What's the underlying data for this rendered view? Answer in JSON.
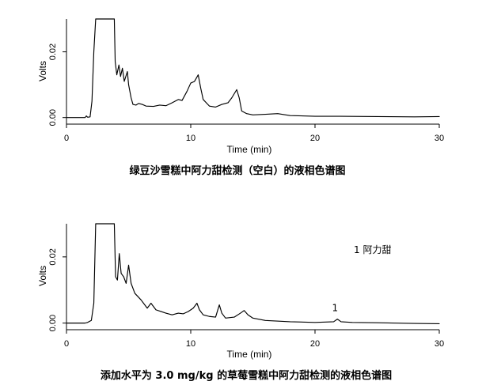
{
  "chart_data": [
    {
      "type": "line",
      "title": "绿豆沙雪糕中阿力甜检测（空白）的液相色谱图",
      "xlabel": "Time (min)",
      "ylabel": "Volts",
      "xlim": [
        0,
        30
      ],
      "ylim": [
        -0.002,
        0.03
      ],
      "xticks": [
        0,
        10,
        20,
        30
      ],
      "xtick_labels": [
        "0",
        "10",
        "20",
        "30"
      ],
      "yticks": [
        0.0,
        0.02
      ],
      "ytick_labels": [
        "0.00",
        "0.02"
      ],
      "series": [
        {
          "values": [
            [
              0.0,
              0.0
            ],
            [
              1.5,
              0.0
            ],
            [
              1.6,
              0.0005
            ],
            [
              1.7,
              0.0001
            ],
            [
              1.9,
              0.0002
            ],
            [
              2.05,
              0.005
            ],
            [
              2.2,
              0.02
            ],
            [
              2.35,
              0.03
            ],
            [
              3.85,
              0.03
            ],
            [
              3.92,
              0.017
            ],
            [
              4.05,
              0.013
            ],
            [
              4.22,
              0.016
            ],
            [
              4.35,
              0.0125
            ],
            [
              4.5,
              0.015
            ],
            [
              4.65,
              0.011
            ],
            [
              4.9,
              0.014
            ],
            [
              5.0,
              0.01
            ],
            [
              5.2,
              0.006
            ],
            [
              5.35,
              0.004
            ],
            [
              5.6,
              0.0038
            ],
            [
              5.8,
              0.0043
            ],
            [
              6.1,
              0.004
            ],
            [
              6.4,
              0.0035
            ],
            [
              7.0,
              0.0034
            ],
            [
              7.5,
              0.0038
            ],
            [
              8.0,
              0.0036
            ],
            [
              8.5,
              0.0045
            ],
            [
              9.0,
              0.0055
            ],
            [
              9.3,
              0.0052
            ],
            [
              9.7,
              0.008
            ],
            [
              10.0,
              0.0105
            ],
            [
              10.3,
              0.011
            ],
            [
              10.6,
              0.013
            ],
            [
              10.8,
              0.009
            ],
            [
              11.0,
              0.0055
            ],
            [
              11.5,
              0.0035
            ],
            [
              12.0,
              0.0032
            ],
            [
              12.5,
              0.004
            ],
            [
              13.0,
              0.0045
            ],
            [
              13.3,
              0.006
            ],
            [
              13.7,
              0.0085
            ],
            [
              13.9,
              0.006
            ],
            [
              14.1,
              0.002
            ],
            [
              14.5,
              0.0012
            ],
            [
              15.0,
              0.0008
            ],
            [
              16.0,
              0.001
            ],
            [
              17.0,
              0.0012
            ],
            [
              18.0,
              0.0006
            ],
            [
              20.0,
              0.0004
            ],
            [
              22.0,
              0.0004
            ],
            [
              25.0,
              0.0003
            ],
            [
              28.0,
              0.0002
            ],
            [
              30.0,
              0.0003
            ]
          ]
        }
      ]
    },
    {
      "type": "line",
      "title": "添加水平为 3.0 mg/kg 的草莓雪糕中阿力甜检测的液相色谱图",
      "xlabel": "Time (min)",
      "ylabel": "Volts",
      "xlim": [
        0,
        30
      ],
      "ylim": [
        -0.002,
        0.03
      ],
      "xticks": [
        0,
        10,
        20,
        30
      ],
      "xtick_labels": [
        "0",
        "10",
        "20",
        "30"
      ],
      "yticks": [
        0.0,
        0.02
      ],
      "ytick_labels": [
        "0.00",
        "0.02"
      ],
      "legend": "1   阿力甜",
      "peak_labels": [
        {
          "text": "1",
          "x": 21.8,
          "y": 0.0022
        }
      ],
      "series": [
        {
          "values": [
            [
              0.0,
              0.0
            ],
            [
              1.5,
              0.0
            ],
            [
              1.7,
              0.0002
            ],
            [
              2.0,
              0.0008
            ],
            [
              2.2,
              0.006
            ],
            [
              2.35,
              0.03
            ],
            [
              3.85,
              0.03
            ],
            [
              3.95,
              0.014
            ],
            [
              4.1,
              0.013
            ],
            [
              4.25,
              0.021
            ],
            [
              4.4,
              0.015
            ],
            [
              4.6,
              0.014
            ],
            [
              4.8,
              0.012
            ],
            [
              5.0,
              0.0175
            ],
            [
              5.2,
              0.012
            ],
            [
              5.5,
              0.009
            ],
            [
              6.0,
              0.007
            ],
            [
              6.5,
              0.0045
            ],
            [
              6.8,
              0.006
            ],
            [
              7.2,
              0.004
            ],
            [
              7.6,
              0.0035
            ],
            [
              8.0,
              0.003
            ],
            [
              8.5,
              0.0025
            ],
            [
              9.0,
              0.003
            ],
            [
              9.4,
              0.0028
            ],
            [
              9.8,
              0.0035
            ],
            [
              10.2,
              0.0045
            ],
            [
              10.5,
              0.006
            ],
            [
              10.7,
              0.004
            ],
            [
              11.0,
              0.0025
            ],
            [
              11.5,
              0.002
            ],
            [
              12.0,
              0.0018
            ],
            [
              12.3,
              0.0055
            ],
            [
              12.5,
              0.003
            ],
            [
              12.8,
              0.0015
            ],
            [
              13.5,
              0.0018
            ],
            [
              14.0,
              0.003
            ],
            [
              14.3,
              0.0038
            ],
            [
              14.6,
              0.0025
            ],
            [
              15.0,
              0.0015
            ],
            [
              16.0,
              0.0008
            ],
            [
              18.0,
              0.0004
            ],
            [
              20.0,
              0.0002
            ],
            [
              21.5,
              0.0004
            ],
            [
              21.8,
              0.0012
            ],
            [
              22.1,
              0.0004
            ],
            [
              23.0,
              0.0002
            ],
            [
              25.0,
              0.0001
            ],
            [
              28.0,
              -0.0001
            ],
            [
              30.0,
              -0.0002
            ]
          ]
        }
      ]
    }
  ]
}
